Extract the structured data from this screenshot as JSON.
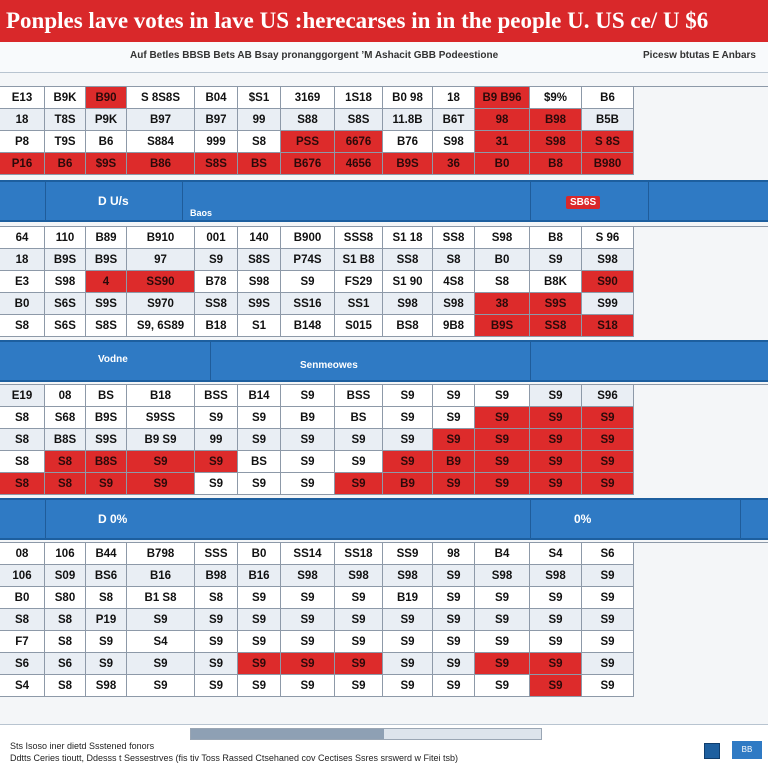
{
  "header": {
    "title": "Ponples lave votes in lave US :herecarses in in the people U. US ce/ U $6",
    "subtitle_left": "Auf Betles BBSB Bets AB Bsay pronanggorgent ’M Ashacit GBB Podeestione",
    "subtitle_right": "Picesw btutas E Anbars"
  },
  "bands": [
    {
      "label": "D U/s",
      "sublabel": "Baos",
      "badge": "SB6S"
    },
    {
      "label": "Vodne",
      "sublabel": "Senmeowes",
      "badge": ""
    },
    {
      "label": "D 0%",
      "sublabel": "",
      "badge": "0%"
    }
  ],
  "tables": [
    {
      "rows": [
        [
          "E13",
          "B9K",
          "B90",
          "S 8S8S",
          "B04",
          "$S1",
          "3169",
          "1S18",
          "B0 98",
          "18",
          "B9 B96",
          "$9%",
          "B6"
        ],
        [
          "18",
          "T8S",
          "P9K",
          "B97",
          "B97",
          "99",
          "S88",
          "S8S",
          "11.8B",
          "B6T",
          "98",
          "B98",
          "B5B"
        ],
        [
          "P8",
          "T9S",
          "B6",
          "S884",
          "999",
          "S8",
          "PSS",
          "6676",
          "B76",
          "S98",
          "31",
          "S98",
          "S 8S"
        ],
        [
          "P16",
          "B6",
          "$9S",
          "B86",
          "S8S",
          "BS",
          "B676",
          "4656",
          "B9S",
          "36",
          "B0",
          "B8",
          "B980"
        ]
      ],
      "marks": [
        [
          "l",
          "l",
          "r",
          "l",
          "l",
          "l",
          "l",
          "l",
          "l",
          "l",
          "r",
          "l",
          "l"
        ],
        [
          "a",
          "a",
          "a",
          "a",
          "a",
          "a",
          "a",
          "a",
          "a",
          "a",
          "r",
          "r",
          "a"
        ],
        [
          "l",
          "l",
          "l",
          "l",
          "l",
          "l",
          "r",
          "r",
          "l",
          "l",
          "r",
          "r",
          "r"
        ],
        [
          "r",
          "r",
          "r",
          "r",
          "r",
          "r",
          "r",
          "r",
          "r",
          "r",
          "r",
          "r",
          "r"
        ]
      ]
    },
    {
      "rows": [
        [
          "64",
          "110",
          "B89",
          "B910",
          "001",
          "140",
          "B900",
          "SSS8",
          "S1 18",
          "SS8",
          "S98",
          "B8",
          "S 96"
        ],
        [
          "18",
          "B9S",
          "B9S",
          "97",
          "S9",
          "S8S",
          "P74S",
          "S1 B8",
          "SS8",
          "S8",
          "B0",
          "S9",
          "S98"
        ],
        [
          "E3",
          "S98",
          "4",
          "SS90",
          "B78",
          "S98",
          "S9",
          "FS29",
          "S1 90",
          "4S8",
          "S8",
          "B8K",
          "S90"
        ],
        [
          "B0",
          "S6S",
          "S9S",
          "S970",
          "SS8",
          "S9S",
          "SS16",
          "SS1",
          "S98",
          "S98",
          "38",
          "S9S",
          "S99"
        ],
        [
          "S8",
          "S6S",
          "S8S",
          "S9, 6S89",
          "B18",
          "S1",
          "B148",
          "S015",
          "BS8",
          "9B8",
          "B9S",
          "SS8",
          "S18"
        ]
      ],
      "marks": [
        [
          "l",
          "l",
          "l",
          "l",
          "l",
          "l",
          "l",
          "l",
          "l",
          "l",
          "l",
          "l",
          "l"
        ],
        [
          "a",
          "a",
          "a",
          "a",
          "a",
          "a",
          "a",
          "a",
          "a",
          "a",
          "a",
          "a",
          "a"
        ],
        [
          "l",
          "l",
          "r",
          "r",
          "l",
          "l",
          "l",
          "l",
          "l",
          "l",
          "l",
          "l",
          "r"
        ],
        [
          "a",
          "a",
          "a",
          "a",
          "a",
          "a",
          "a",
          "a",
          "a",
          "a",
          "r",
          "r",
          "a"
        ],
        [
          "l",
          "l",
          "l",
          "l",
          "l",
          "l",
          "l",
          "l",
          "l",
          "l",
          "r",
          "r",
          "r"
        ]
      ]
    },
    {
      "rows": [
        [
          "E19",
          "08",
          "BS",
          "B18",
          "BSS",
          "B14",
          "S9",
          "BSS",
          "S9",
          "S9",
          "S9",
          "S9",
          "S96"
        ],
        [
          "S8",
          "S68",
          "B9S",
          "S9SS",
          "S9",
          "S9",
          "B9",
          "BS",
          "S9",
          "S9",
          "S9",
          "S9",
          "S9"
        ],
        [
          "S8",
          "B8S",
          "S9S",
          "B9 S9",
          "99",
          "S9",
          "S9",
          "S9",
          "S9",
          "S9",
          "S9",
          "S9",
          "S9"
        ],
        [
          "S8",
          "S8",
          "B8S",
          "S9",
          "S9",
          "BS",
          "S9",
          "S9",
          "S9",
          "B9",
          "S9",
          "S9",
          "S9"
        ],
        [
          "S8",
          "S8",
          "S9",
          "S9",
          "S9",
          "S9",
          "S9",
          "S9",
          "B9",
          "S9",
          "S9",
          "S9",
          "S9"
        ]
      ],
      "marks": [
        [
          "a",
          "l",
          "l",
          "l",
          "l",
          "l",
          "l",
          "l",
          "l",
          "l",
          "l",
          "a",
          "a"
        ],
        [
          "l",
          "l",
          "l",
          "l",
          "l",
          "l",
          "l",
          "l",
          "l",
          "l",
          "r",
          "r",
          "r"
        ],
        [
          "a",
          "a",
          "a",
          "a",
          "a",
          "a",
          "a",
          "a",
          "a",
          "r",
          "r",
          "r",
          "r"
        ],
        [
          "l",
          "r",
          "r",
          "r",
          "r",
          "l",
          "l",
          "l",
          "r",
          "r",
          "r",
          "r",
          "r"
        ],
        [
          "r",
          "r",
          "r",
          "r",
          "l",
          "l",
          "l",
          "r",
          "r",
          "r",
          "r",
          "r",
          "r"
        ]
      ]
    },
    {
      "rows": [
        [
          "08",
          "106",
          "B44",
          "B798",
          "SSS",
          "B0",
          "SS14",
          "SS18",
          "SS9",
          "98",
          "B4",
          "S4",
          "S6"
        ],
        [
          "106",
          "S09",
          "BS6",
          "B16",
          "B98",
          "B16",
          "S98",
          "S98",
          "S98",
          "S9",
          "S98",
          "S98",
          "S9"
        ],
        [
          "B0",
          "S80",
          "S8",
          "B1 S8",
          "S8",
          "S9",
          "S9",
          "S9",
          "B19",
          "S9",
          "S9",
          "S9",
          "S9"
        ],
        [
          "S8",
          "S8",
          "P19",
          "S9",
          "S9",
          "S9",
          "S9",
          "S9",
          "S9",
          "S9",
          "S9",
          "S9",
          "S9"
        ],
        [
          "F7",
          "S8",
          "S9",
          "S4",
          "S9",
          "S9",
          "S9",
          "S9",
          "S9",
          "S9",
          "S9",
          "S9",
          "S9"
        ],
        [
          "S6",
          "S6",
          "S9",
          "S9",
          "S9",
          "S9",
          "S9",
          "S9",
          "S9",
          "S9",
          "S9",
          "S9",
          "S9"
        ],
        [
          "S4",
          "S8",
          "S98",
          "S9",
          "S9",
          "S9",
          "S9",
          "S9",
          "S9",
          "S9",
          "S9",
          "S9",
          "S9"
        ]
      ],
      "marks": [
        [
          "l",
          "l",
          "l",
          "l",
          "l",
          "l",
          "l",
          "l",
          "l",
          "l",
          "l",
          "l",
          "l"
        ],
        [
          "a",
          "a",
          "a",
          "a",
          "a",
          "a",
          "a",
          "a",
          "a",
          "a",
          "a",
          "a",
          "a"
        ],
        [
          "l",
          "l",
          "l",
          "l",
          "l",
          "l",
          "l",
          "l",
          "l",
          "l",
          "l",
          "l",
          "l"
        ],
        [
          "a",
          "a",
          "a",
          "a",
          "a",
          "a",
          "a",
          "a",
          "a",
          "a",
          "a",
          "a",
          "a"
        ],
        [
          "l",
          "l",
          "l",
          "l",
          "l",
          "l",
          "l",
          "l",
          "l",
          "l",
          "l",
          "l",
          "l"
        ],
        [
          "a",
          "a",
          "a",
          "a",
          "a",
          "r",
          "r",
          "r",
          "a",
          "a",
          "r",
          "r",
          "a"
        ],
        [
          "l",
          "l",
          "l",
          "l",
          "l",
          "l",
          "l",
          "l",
          "l",
          "l",
          "l",
          "r",
          "l"
        ]
      ]
    }
  ],
  "footer": {
    "line1": "Sts Isoso iner dietd Ssstened fonors",
    "line2": "Ddtts Ceries tioutt, Ddesss t Sessestrves (fis tiv Toss Rassed Ctsehaned cov Cectises Ssres srswerd w Fitei tsb)",
    "button_label": "BB",
    "progress": 0.55
  },
  "colors": {
    "accent_red": "#d9282a",
    "accent_blue": "#2f7ac4"
  }
}
